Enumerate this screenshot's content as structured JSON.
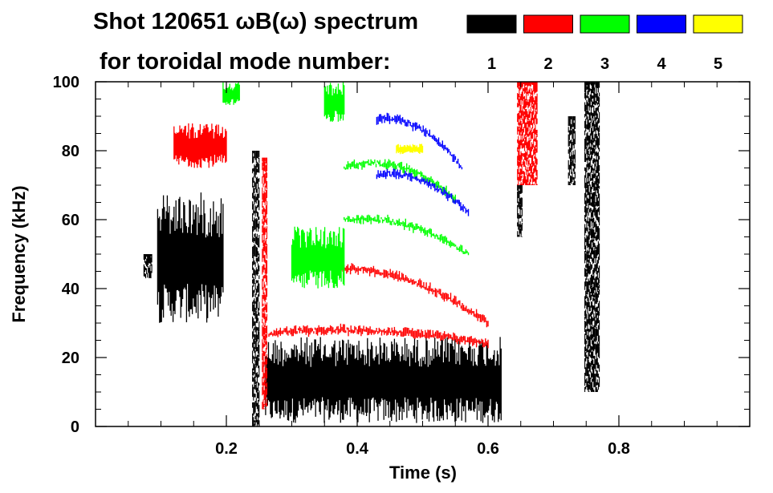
{
  "chart_data": {
    "type": "spectrogram",
    "title_line1": "Shot 120651 ωB(ω) spectrum",
    "title_line2": "for toroidal mode number:",
    "xlabel": "Time (s)",
    "ylabel": "Frequency (kHz)",
    "xlim": [
      0.0,
      1.0
    ],
    "ylim": [
      0,
      100
    ],
    "x_ticks": [
      0.2,
      0.4,
      0.6,
      0.8
    ],
    "x_tick_labels": [
      "0.2",
      "0.4",
      "0.6",
      "0.8"
    ],
    "y_ticks": [
      0,
      20,
      40,
      60,
      80,
      100
    ],
    "y_tick_labels": [
      "0",
      "20",
      "40",
      "60",
      "80",
      "100"
    ],
    "legend": [
      {
        "label": "1",
        "color": "#000000"
      },
      {
        "label": "2",
        "color": "#ff0000"
      },
      {
        "label": "3",
        "color": "#00ff00"
      },
      {
        "label": "4",
        "color": "#0000ff"
      },
      {
        "label": "5",
        "color": "#ffff00"
      }
    ],
    "features": [
      {
        "mode": 1,
        "kind": "blob",
        "t": [
          0.26,
          0.62
        ],
        "f": [
          1,
          26
        ]
      },
      {
        "mode": 1,
        "kind": "blob",
        "t": [
          0.095,
          0.195
        ],
        "f": [
          30,
          68
        ]
      },
      {
        "mode": 1,
        "kind": "column",
        "t": [
          0.748,
          0.77
        ],
        "f": [
          10,
          100
        ]
      },
      {
        "mode": 1,
        "kind": "column",
        "t": [
          0.723,
          0.733
        ],
        "f": [
          70,
          90
        ]
      },
      {
        "mode": 1,
        "kind": "column",
        "t": [
          0.645,
          0.652
        ],
        "f": [
          55,
          70
        ]
      },
      {
        "mode": 1,
        "kind": "column",
        "t": [
          0.074,
          0.086
        ],
        "f": [
          43,
          50
        ]
      },
      {
        "mode": 1,
        "kind": "column",
        "t": [
          0.24,
          0.25
        ],
        "f": [
          0,
          80
        ]
      },
      {
        "mode": 2,
        "kind": "band",
        "t": [
          0.265,
          0.6
        ],
        "f": [
          27,
          30,
          24
        ]
      },
      {
        "mode": 2,
        "kind": "band",
        "t": [
          0.37,
          0.6
        ],
        "f": [
          46,
          46,
          30
        ]
      },
      {
        "mode": 2,
        "kind": "blob",
        "t": [
          0.12,
          0.2
        ],
        "f": [
          75,
          88
        ]
      },
      {
        "mode": 2,
        "kind": "column",
        "t": [
          0.645,
          0.675
        ],
        "f": [
          70,
          100
        ]
      },
      {
        "mode": 2,
        "kind": "column",
        "t": [
          0.255,
          0.262
        ],
        "f": [
          5,
          78
        ]
      },
      {
        "mode": 3,
        "kind": "band",
        "t": [
          0.38,
          0.57
        ],
        "f": [
          60,
          62,
          50
        ]
      },
      {
        "mode": 3,
        "kind": "band",
        "t": [
          0.38,
          0.55
        ],
        "f": [
          75,
          80,
          66
        ]
      },
      {
        "mode": 3,
        "kind": "blob",
        "t": [
          0.3,
          0.38
        ],
        "f": [
          40,
          58
        ]
      },
      {
        "mode": 3,
        "kind": "blob",
        "t": [
          0.35,
          0.38
        ],
        "f": [
          88,
          100
        ]
      },
      {
        "mode": 3,
        "kind": "blob",
        "t": [
          0.195,
          0.22
        ],
        "f": [
          93,
          100
        ]
      },
      {
        "mode": 4,
        "kind": "band",
        "t": [
          0.43,
          0.56
        ],
        "f": [
          89,
          91,
          75
        ]
      },
      {
        "mode": 4,
        "kind": "band",
        "t": [
          0.43,
          0.57
        ],
        "f": [
          73,
          75,
          62
        ]
      },
      {
        "mode": 5,
        "kind": "blob",
        "t": [
          0.46,
          0.5
        ],
        "f": [
          79,
          82
        ]
      }
    ]
  }
}
